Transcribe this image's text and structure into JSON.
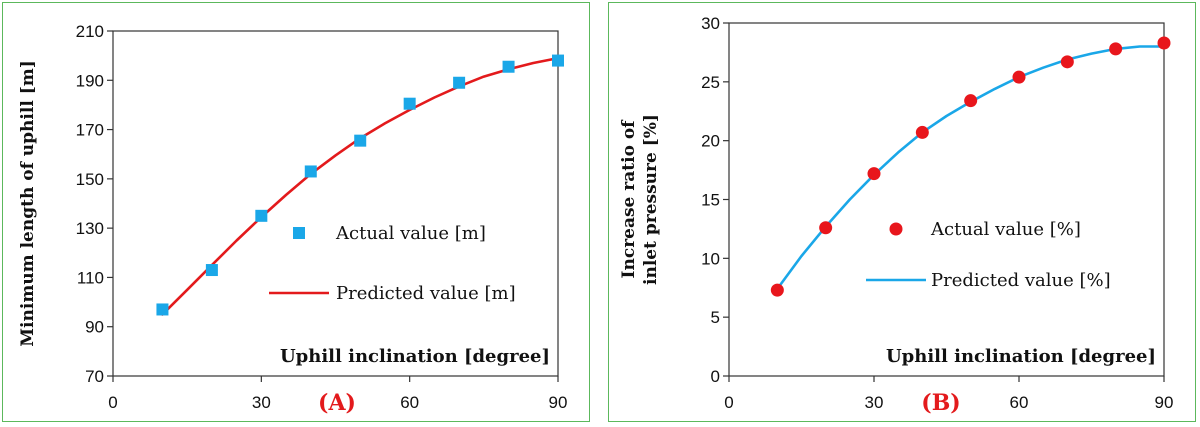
{
  "chart_data": [
    {
      "type": "scatter",
      "panel_label": "(A)",
      "xlabel": "Uphill  inclination  [degree]",
      "ylabel": "Minimum length of  uphill [m]",
      "xlim": [
        0,
        90
      ],
      "ylim": [
        70,
        210
      ],
      "xticks": [
        0,
        30,
        60,
        90
      ],
      "yticks": [
        70,
        90,
        110,
        130,
        150,
        170,
        190,
        210
      ],
      "grid": false,
      "legend_position": "center-right",
      "series": [
        {
          "name": "Actual value [m]",
          "kind": "marker",
          "marker": "square",
          "color": "#1aa7e8",
          "x": [
            10,
            20,
            30,
            40,
            50,
            60,
            70,
            80,
            90
          ],
          "y": [
            97,
            113,
            135,
            153,
            165.5,
            180.5,
            189,
            195.5,
            198
          ]
        },
        {
          "name": "Predicted value [m]",
          "kind": "line",
          "color": "#e31a1c",
          "x": [
            10,
            15,
            20,
            25,
            30,
            35,
            40,
            45,
            50,
            55,
            60,
            65,
            70,
            75,
            80,
            85,
            90
          ],
          "y": [
            95,
            105,
            115,
            125,
            134.5,
            143.5,
            152,
            159.5,
            166.5,
            172.5,
            178,
            183,
            187.5,
            191.5,
            194.5,
            197,
            199
          ]
        }
      ]
    },
    {
      "type": "scatter",
      "panel_label": "(B)",
      "xlabel": "Uphill  inclination  [degree]",
      "ylabel_lines": [
        "Increase ratio of",
        "inlet pressure [%]"
      ],
      "xlim": [
        0,
        90
      ],
      "ylim": [
        0,
        30
      ],
      "xticks": [
        0,
        30,
        60,
        90
      ],
      "yticks": [
        0,
        5,
        10,
        15,
        20,
        25,
        30
      ],
      "grid": false,
      "legend_position": "center-right",
      "series": [
        {
          "name": "Actual value [%]",
          "kind": "marker",
          "marker": "circle",
          "color": "#e8161c",
          "x": [
            10,
            20,
            30,
            40,
            50,
            60,
            70,
            80,
            90
          ],
          "y": [
            7.3,
            12.6,
            17.2,
            20.7,
            23.4,
            25.4,
            26.7,
            27.8,
            28.3
          ]
        },
        {
          "name": "Predicted value [%]",
          "kind": "line",
          "color": "#1aa7e8",
          "x": [
            10,
            15,
            20,
            25,
            30,
            35,
            40,
            45,
            50,
            55,
            60,
            65,
            70,
            75,
            80,
            85,
            90
          ],
          "y": [
            7.4,
            10.2,
            12.7,
            15.0,
            17.1,
            19.0,
            20.7,
            22.1,
            23.3,
            24.4,
            25.4,
            26.2,
            26.9,
            27.4,
            27.8,
            28.0,
            28.0
          ]
        }
      ]
    }
  ],
  "colors": {
    "frame": "#5cb85c",
    "panel_label": "#e31a1c"
  }
}
